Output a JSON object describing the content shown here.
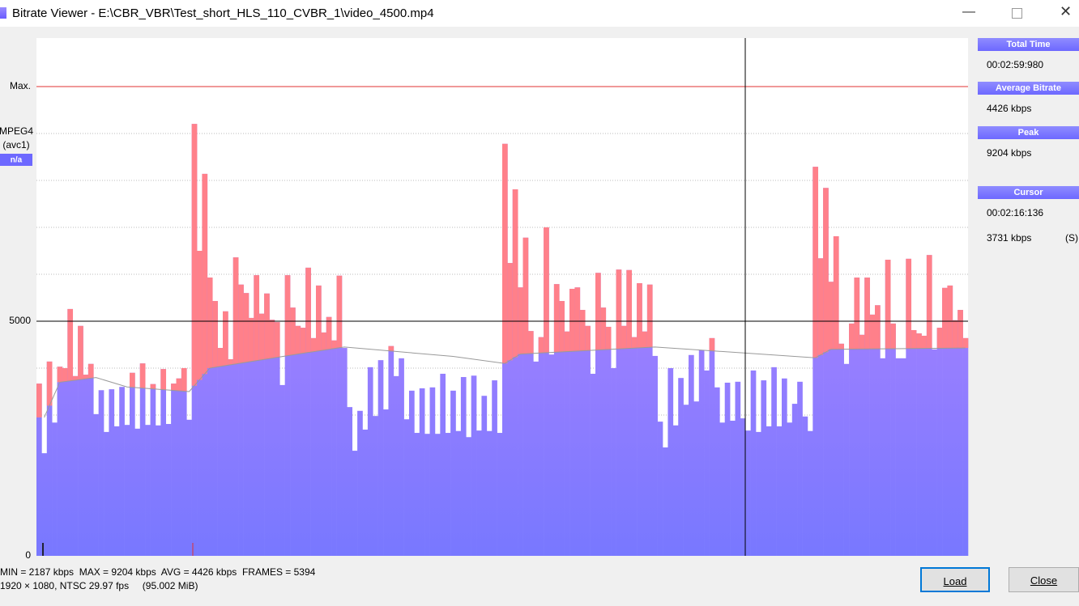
{
  "window": {
    "title": "Bitrate Viewer - E:\\CBR_VBR\\Test_short_HLS_110_CVBR_1\\video_4500.mp4"
  },
  "stream": {
    "codec": "MPEG4",
    "fourcc": "(avc1)",
    "badge": "n/a"
  },
  "panel": [
    {
      "header": "Total Time",
      "value": "00:02:59:980"
    },
    {
      "header": "Average Bitrate",
      "value": "4426 kbps"
    },
    {
      "header": "Peak",
      "value": "9204 kbps"
    },
    {
      "header": "Cursor",
      "value": "00:02:16:136",
      "extra": "3731 kbps",
      "mode": "(S)"
    }
  ],
  "status": [
    "MIN = 2187 kbps  MAX = 9204 kbps  AVG = 4426 kbps  FRAMES = 5394",
    "1920 × 1080, NTSC 29.97 fps     (95.002 MiB)"
  ],
  "buttons": [
    "Load",
    "Close"
  ],
  "chart_data": {
    "type": "bar",
    "ylim": [
      0,
      11000
    ],
    "yticks": [
      0,
      5000,
      {
        "value": 10000,
        "label": "Max."
      }
    ],
    "minor_yticks": [
      1000,
      2000,
      3000,
      4000,
      6000,
      7000,
      8000,
      9000
    ],
    "grid": true,
    "color": "#a684ff",
    "above_average_color": "#ff808a",
    "max_color": "#e03030",
    "values": [
      3670,
      2187,
      4140,
      2840,
      4030,
      4000,
      5260,
      3830,
      4900,
      3860,
      4090,
      3020,
      3530,
      2640,
      3550,
      2760,
      3600,
      2790,
      3900,
      2710,
      4100,
      2790,
      3660,
      2780,
      3980,
      2810,
      3670,
      3780,
      4000,
      2900,
      9204,
      6500,
      8140,
      5930,
      5430,
      4430,
      5210,
      4190,
      6360,
      5780,
      5600,
      5070,
      5980,
      5160,
      5590,
      5030,
      4980,
      3640,
      5980,
      5290,
      4900,
      4860,
      6140,
      4640,
      5760,
      4760,
      5090,
      4590,
      5970,
      4430,
      3170,
      2240,
      3090,
      2690,
      4020,
      2980,
      4170,
      3120,
      4470,
      3830,
      4210,
      2910,
      3520,
      2620,
      3570,
      2600,
      3590,
      2600,
      3880,
      2620,
      3520,
      2660,
      3810,
      2530,
      3840,
      2670,
      3410,
      2660,
      3740,
      2620,
      8780,
      6240,
      7810,
      5720,
      6780,
      4790,
      4140,
      4660,
      7000,
      4290,
      5790,
      5430,
      4780,
      5690,
      5720,
      5240,
      4900,
      3880,
      6030,
      5290,
      4880,
      4000,
      6100,
      4900,
      6090,
      4660,
      5810,
      4780,
      5780,
      4260,
      2860,
      2310,
      4000,
      2780,
      3790,
      3220,
      4280,
      3290,
      4380,
      3950,
      4640,
      3590,
      2840,
      3690,
      2880,
      3710,
      2930,
      2670,
      3950,
      2640,
      3740,
      2760,
      4020,
      2760,
      3780,
      2840,
      3240,
      3710,
      2970,
      2660,
      8290,
      6340,
      7840,
      5840,
      6810,
      4520,
      4090,
      4950,
      5930,
      4710,
      5930,
      5140,
      5340,
      4210,
      6310,
      4950,
      4210,
      4210,
      6330,
      4810,
      4740,
      4690,
      6410,
      4400,
      4860,
      5710,
      5760,
      5020,
      5240,
      4640
    ],
    "average": {
      "color": "#999999",
      "x": [
        1,
        4,
        11,
        17,
        29,
        33,
        50,
        59,
        80,
        90,
        93,
        119,
        150,
        153,
        179
      ],
      "values": [
        2950,
        3700,
        3800,
        3600,
        3500,
        4000,
        4300,
        4450,
        4250,
        4100,
        4300,
        4450,
        4220,
        4400,
        4430
      ]
    }
  }
}
